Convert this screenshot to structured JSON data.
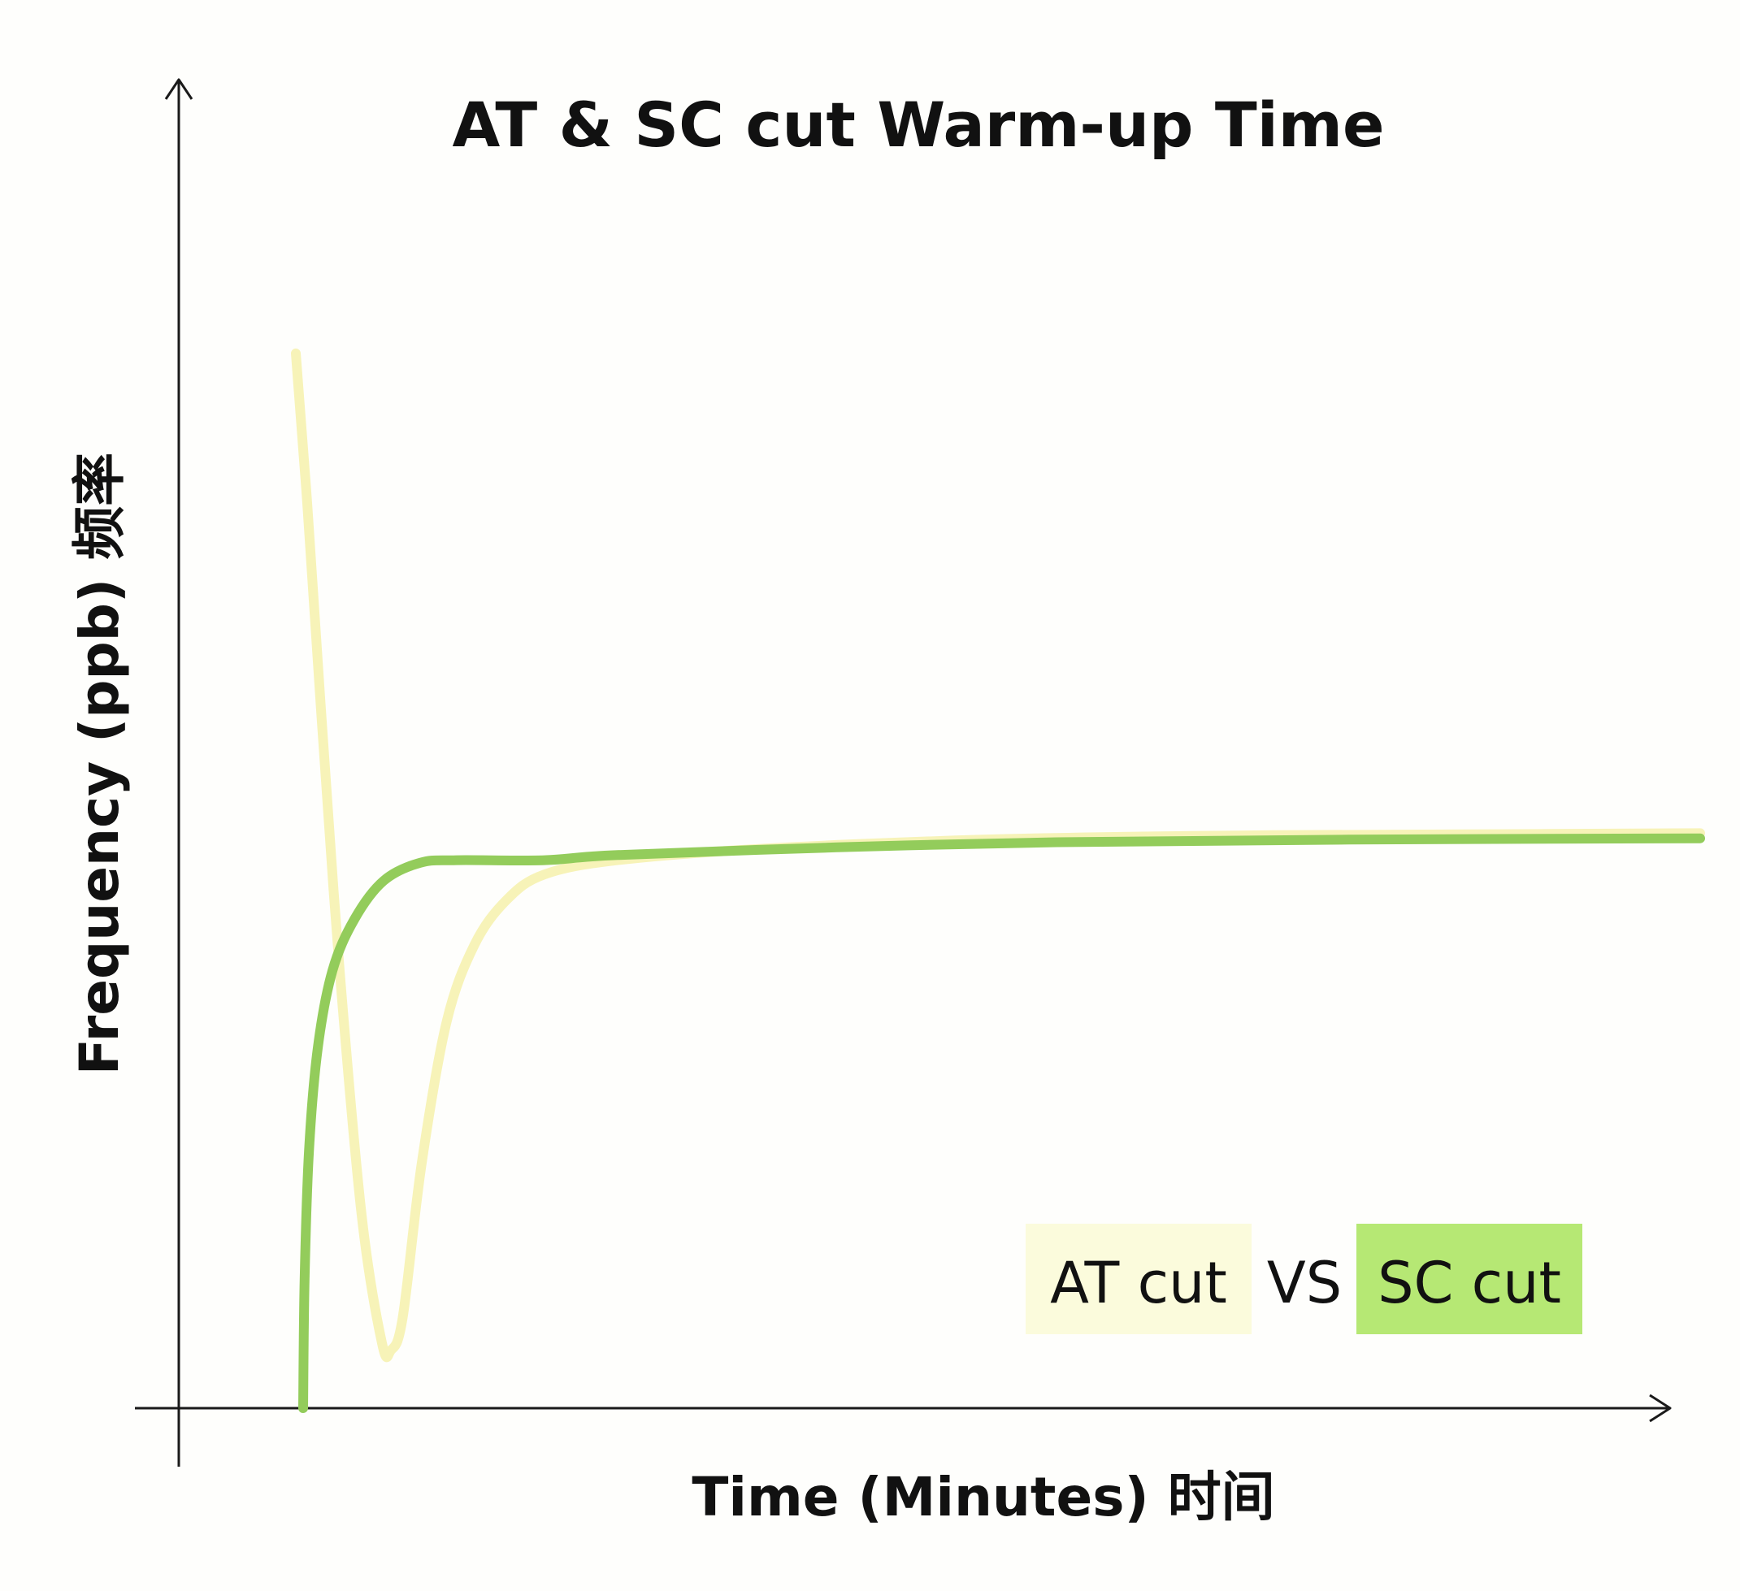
{
  "chart_data": {
    "type": "line",
    "title": "AT & SC cut Warm-up Time",
    "xlabel": "Time (Minutes) 时间",
    "ylabel": "Frequency (ppb) 频率",
    "grid": false,
    "xlim": [
      0,
      100
    ],
    "ylim": [
      0,
      100
    ],
    "legend": {
      "placement": "bottom-right",
      "separator": "VS"
    },
    "series": [
      {
        "name": "AT cut",
        "color": "#f7f3b8",
        "x": [
          8,
          8.8,
          9.8,
          11,
          12.5,
          13.9,
          14.5,
          15.3,
          16.6,
          18.3,
          20.2,
          22.4,
          25,
          30,
          40,
          55,
          70,
          85,
          104
        ],
        "y": [
          82,
          70,
          53,
          34,
          15,
          5,
          4.5,
          7,
          19,
          30,
          36,
          39.5,
          41.5,
          42.6,
          43.5,
          44.2,
          44.5,
          44.6,
          44.7
        ]
      },
      {
        "name": "SC cut",
        "color": "#93cc5b",
        "x": [
          8.5,
          8.6,
          8.9,
          9.5,
          10.5,
          12,
          14,
          16.5,
          19,
          25,
          30,
          45,
          60,
          80,
          104
        ],
        "y": [
          0,
          10,
          20,
          28,
          34,
          38,
          41,
          42.4,
          42.6,
          42.6,
          43,
          43.6,
          44,
          44.2,
          44.3
        ]
      }
    ]
  }
}
